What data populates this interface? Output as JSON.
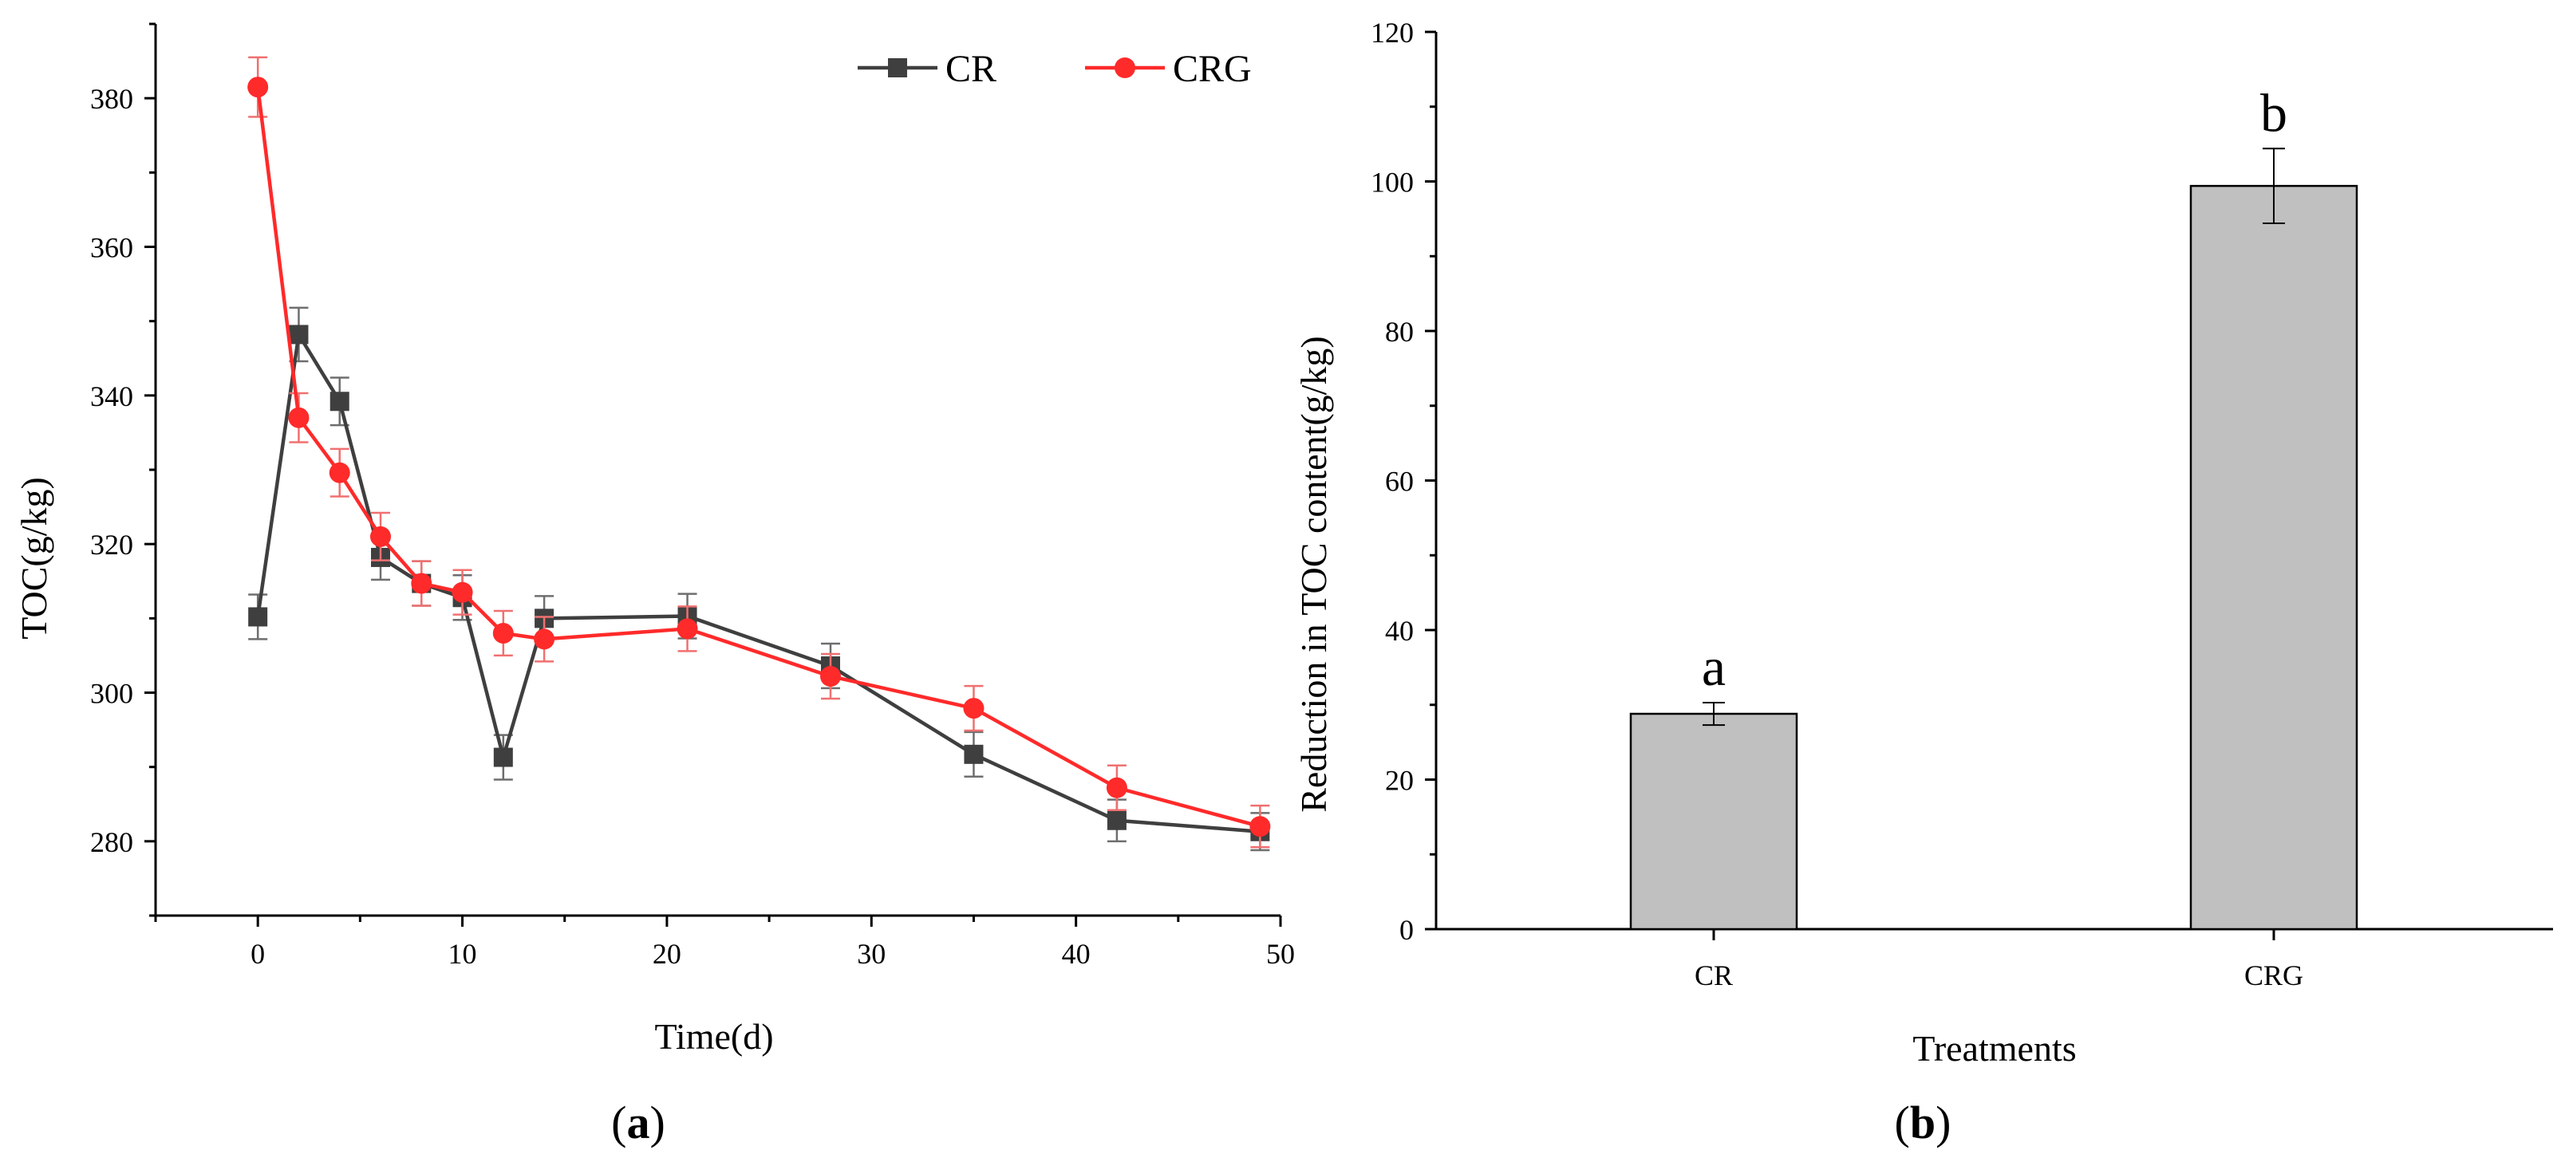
{
  "chart_data": [
    {
      "panel": "a",
      "type": "line",
      "xlabel": "Time(d)",
      "ylabel": "TOC(g/kg)",
      "xlim": [
        -5,
        50
      ],
      "ylim": [
        270,
        390
      ],
      "xticks": [
        0,
        10,
        20,
        30,
        40,
        50
      ],
      "yticks": [
        280,
        300,
        320,
        340,
        360,
        380
      ],
      "legend_position": "top-right",
      "series": [
        {
          "name": "CR",
          "color": "#3f3f3f",
          "marker": "square",
          "x": [
            0,
            2,
            4,
            6,
            8,
            10,
            12,
            14,
            21,
            28,
            35,
            42,
            49
          ],
          "y": [
            310.2,
            348.2,
            339.2,
            318.2,
            314.7,
            312.8,
            291.3,
            310.0,
            310.3,
            303.6,
            291.7,
            282.8,
            281.3
          ],
          "err": [
            3.0,
            3.6,
            3.2,
            3.0,
            3.0,
            3.0,
            3.0,
            3.0,
            3.0,
            3.0,
            3.0,
            2.8,
            2.5
          ]
        },
        {
          "name": "CRG",
          "color": "#ff2a2a",
          "marker": "circle",
          "x": [
            0,
            2,
            4,
            6,
            8,
            10,
            12,
            14,
            21,
            28,
            35,
            42,
            49
          ],
          "y": [
            381.5,
            337.0,
            329.6,
            321.0,
            314.7,
            313.5,
            308.0,
            307.2,
            308.6,
            302.2,
            297.9,
            287.2,
            282.0
          ],
          "err": [
            4.0,
            3.3,
            3.2,
            3.2,
            3.0,
            3.0,
            3.0,
            3.0,
            3.0,
            3.0,
            3.0,
            3.0,
            2.8
          ]
        }
      ]
    },
    {
      "panel": "b",
      "type": "bar",
      "xlabel": "Treatments",
      "ylabel": "Reduction in TOC content(g/kg)",
      "categories": [
        "CR",
        "CRG"
      ],
      "values": [
        28.8,
        99.4
      ],
      "errors": [
        1.5,
        5.0
      ],
      "significance": [
        "a",
        "b"
      ],
      "ylim": [
        0,
        120
      ],
      "yticks": [
        0,
        20,
        40,
        60,
        80,
        100,
        120
      ],
      "bar_color": "#c0c0c0"
    }
  ],
  "panel_labels": [
    "a",
    "b"
  ]
}
